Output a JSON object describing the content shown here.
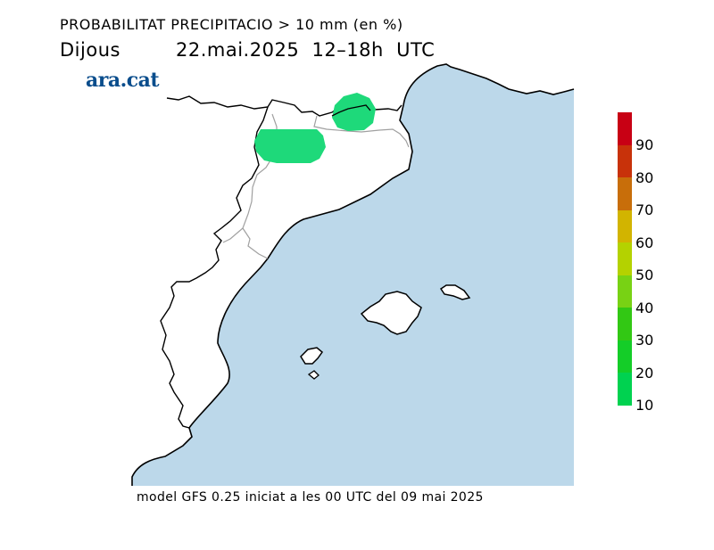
{
  "header": {
    "title": "PROBABILITAT PRECIPITACIO > 10 mm (en %)",
    "day": "Dijous",
    "datetime": "22.mai.2025  12–18h  UTC"
  },
  "logo": {
    "text": "ara.cat",
    "color": "#0a4d8c"
  },
  "map": {
    "sea_color": "#bcd8ea",
    "land_color": "#ffffff",
    "coast_color": "#000000",
    "border_color": "#a0a0a0",
    "precip_color": "#1ed97a"
  },
  "legend": {
    "colors": [
      "#c80014",
      "#c8320a",
      "#c86e0a",
      "#d2b400",
      "#b4d200",
      "#78d214",
      "#32c814",
      "#14cd28",
      "#00d250",
      "#1ee182"
    ],
    "labels": [
      "90",
      "80",
      "70",
      "60",
      "50",
      "40",
      "30",
      "20",
      "10"
    ]
  },
  "footer": {
    "text": "model GFS 0.25 iniciat a les 00 UTC del 09 mai 2025"
  }
}
